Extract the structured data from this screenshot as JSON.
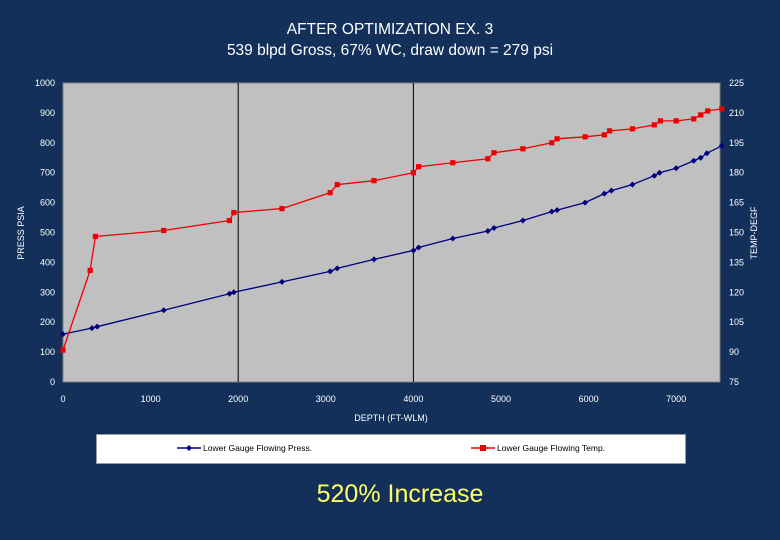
{
  "chart_data": {
    "type": "line",
    "title": "AFTER OPTIMIZATION EX. 3",
    "subtitle": "539 blpd Gross, 67% WC, draw down = 279 psi",
    "xlabel": "DEPTH (FT-WLM)",
    "ylabel": "PRESS PSIA",
    "y2label": "TEMP-DEGF",
    "xlim": [
      0,
      7500
    ],
    "ylim": [
      0,
      1000
    ],
    "y2lim": [
      75,
      225
    ],
    "xticks": [
      "0",
      "1000",
      "2000",
      "3000",
      "4000",
      "5000",
      "6000",
      "7000"
    ],
    "yticks": [
      "0",
      "100",
      "200",
      "300",
      "400",
      "500",
      "600",
      "700",
      "800",
      "900",
      "1000"
    ],
    "y2ticks": [
      "75",
      "90",
      "105",
      "120",
      "135",
      "150",
      "165",
      "180",
      "195",
      "210",
      "225"
    ],
    "series": [
      {
        "name": "Lower Gauge Flowing Press.",
        "axis": "left",
        "color": "#000080",
        "x": [
          0,
          330,
          390,
          1150,
          1900,
          1950,
          2500,
          3050,
          3130,
          3550,
          4000,
          4060,
          4450,
          4850,
          4920,
          5250,
          5580,
          5640,
          5960,
          6180,
          6260,
          6500,
          6750,
          6810,
          7000,
          7200,
          7280,
          7350,
          7520
        ],
        "y": [
          160,
          180,
          185,
          240,
          295,
          300,
          335,
          370,
          380,
          410,
          440,
          450,
          480,
          505,
          515,
          540,
          570,
          575,
          600,
          630,
          640,
          660,
          690,
          700,
          715,
          740,
          750,
          765,
          790
        ]
      },
      {
        "name": "Lower Gauge Flowing Temp.",
        "axis": "right",
        "color": "#ee0000",
        "x": [
          0,
          310,
          370,
          1150,
          1900,
          1950,
          2500,
          3050,
          3130,
          3550,
          4000,
          4060,
          4450,
          4850,
          4920,
          5250,
          5580,
          5640,
          5960,
          6180,
          6240,
          6500,
          6750,
          6820,
          7000,
          7200,
          7280,
          7360,
          7520
        ],
        "y": [
          91,
          131,
          148,
          151,
          156,
          160,
          162,
          170,
          174,
          176,
          180,
          183,
          185,
          187,
          190,
          192,
          195,
          197,
          198,
          199,
          201,
          202,
          204,
          206,
          206,
          207,
          209,
          211,
          212
        ]
      }
    ]
  },
  "footer_text": "520% Increase"
}
